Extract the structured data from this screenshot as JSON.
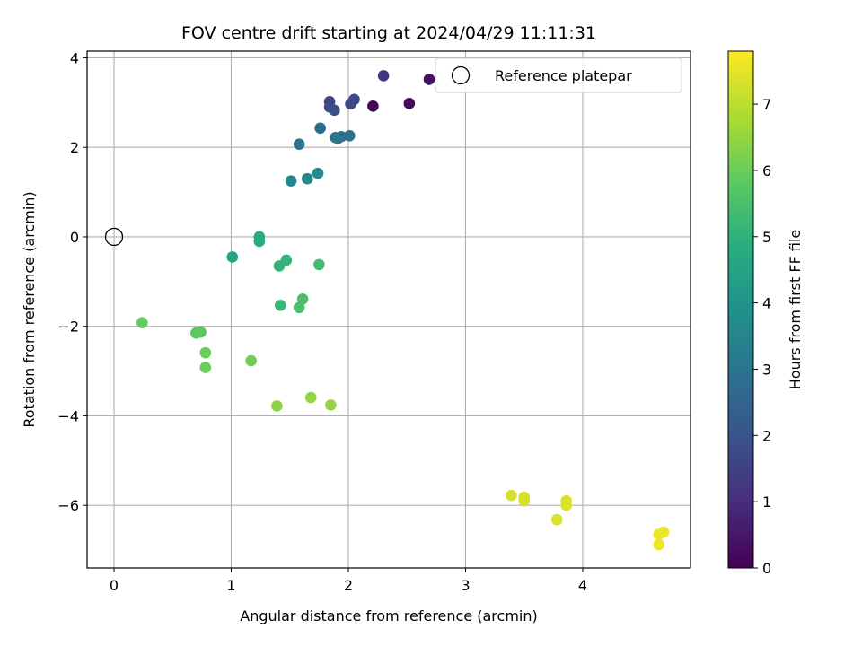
{
  "chart_data": {
    "type": "scatter",
    "title": "FOV centre drift starting at 2024/04/29 11:11:31",
    "xlabel": "Angular distance from reference (arcmin)",
    "ylabel": "Rotation from reference (arcmin)",
    "xlim": [
      -0.23,
      4.92
    ],
    "ylim": [
      -7.4,
      4.15
    ],
    "xticks": [
      0,
      1,
      2,
      3,
      4
    ],
    "yticks": [
      -6,
      -4,
      -2,
      0,
      2,
      4
    ],
    "xtick_labels": [
      "0",
      "1",
      "2",
      "3",
      "4"
    ],
    "ytick_labels": [
      "−6",
      "−4",
      "−2",
      "0",
      "2",
      "4"
    ],
    "grid": true,
    "legend": {
      "label": "Reference platepar",
      "placement": "top-right"
    },
    "reference_point": {
      "x": 0,
      "y": 0
    },
    "colorbar": {
      "label": "Hours from first FF file",
      "colormap": "viridis",
      "range": [
        0,
        7.8
      ],
      "ticks": [
        0,
        1,
        2,
        3,
        4,
        5,
        6,
        7
      ],
      "tick_labels": [
        "0",
        "1",
        "2",
        "3",
        "4",
        "5",
        "6",
        "7"
      ]
    },
    "points": [
      {
        "x": 2.21,
        "y": 2.92,
        "c": 0.15
      },
      {
        "x": 2.52,
        "y": 2.98,
        "c": 0.25
      },
      {
        "x": 2.69,
        "y": 3.52,
        "c": 0.35
      },
      {
        "x": 2.3,
        "y": 3.6,
        "c": 1.2
      },
      {
        "x": 1.84,
        "y": 3.02,
        "c": 1.6
      },
      {
        "x": 2.02,
        "y": 2.97,
        "c": 1.65
      },
      {
        "x": 2.05,
        "y": 3.07,
        "c": 1.75
      },
      {
        "x": 1.84,
        "y": 2.9,
        "c": 1.8
      },
      {
        "x": 1.88,
        "y": 2.83,
        "c": 1.9
      },
      {
        "x": 1.76,
        "y": 2.43,
        "c": 2.7
      },
      {
        "x": 1.89,
        "y": 2.22,
        "c": 2.8
      },
      {
        "x": 1.94,
        "y": 2.24,
        "c": 2.9
      },
      {
        "x": 2.01,
        "y": 2.26,
        "c": 2.9
      },
      {
        "x": 1.91,
        "y": 2.2,
        "c": 2.95
      },
      {
        "x": 1.58,
        "y": 2.07,
        "c": 3.0
      },
      {
        "x": 1.51,
        "y": 1.25,
        "c": 3.6
      },
      {
        "x": 1.65,
        "y": 1.3,
        "c": 3.65
      },
      {
        "x": 1.74,
        "y": 1.42,
        "c": 3.7
      },
      {
        "x": 1.01,
        "y": -0.45,
        "c": 4.5
      },
      {
        "x": 1.24,
        "y": 0.0,
        "c": 4.8
      },
      {
        "x": 1.24,
        "y": -0.1,
        "c": 4.85
      },
      {
        "x": 1.41,
        "y": -0.65,
        "c": 5.05
      },
      {
        "x": 1.47,
        "y": -0.52,
        "c": 5.1
      },
      {
        "x": 1.75,
        "y": -0.62,
        "c": 5.4
      },
      {
        "x": 1.42,
        "y": -1.53,
        "c": 5.2
      },
      {
        "x": 1.61,
        "y": -1.39,
        "c": 5.5
      },
      {
        "x": 1.58,
        "y": -1.58,
        "c": 5.5
      },
      {
        "x": 0.24,
        "y": -1.92,
        "c": 5.9
      },
      {
        "x": 0.7,
        "y": -2.15,
        "c": 5.75
      },
      {
        "x": 0.74,
        "y": -2.13,
        "c": 5.8
      },
      {
        "x": 0.78,
        "y": -2.59,
        "c": 6.0
      },
      {
        "x": 0.78,
        "y": -2.92,
        "c": 6.0
      },
      {
        "x": 1.17,
        "y": -2.77,
        "c": 6.1
      },
      {
        "x": 1.39,
        "y": -3.78,
        "c": 6.4
      },
      {
        "x": 1.68,
        "y": -3.59,
        "c": 6.5
      },
      {
        "x": 1.85,
        "y": -3.76,
        "c": 6.5
      },
      {
        "x": 3.39,
        "y": -5.78,
        "c": 7.3
      },
      {
        "x": 3.5,
        "y": -5.82,
        "c": 7.3
      },
      {
        "x": 3.5,
        "y": -5.9,
        "c": 7.3
      },
      {
        "x": 3.78,
        "y": -6.32,
        "c": 7.4
      },
      {
        "x": 3.86,
        "y": -5.9,
        "c": 7.4
      },
      {
        "x": 3.86,
        "y": -6.0,
        "c": 7.4
      },
      {
        "x": 4.65,
        "y": -6.65,
        "c": 7.6
      },
      {
        "x": 4.69,
        "y": -6.6,
        "c": 7.6
      },
      {
        "x": 4.65,
        "y": -6.88,
        "c": 7.6
      }
    ]
  }
}
